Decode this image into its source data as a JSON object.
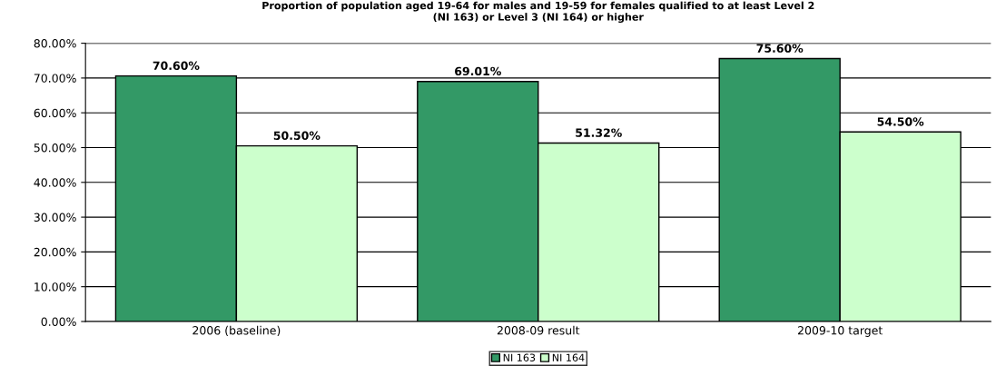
{
  "chart_data": {
    "type": "bar",
    "title": "Proportion of population aged 19-64 for males and 19-59 for females qualified to at least Level 2\n(NI 163) or Level 3 (NI 164) or higher",
    "categories": [
      "2006 (baseline)",
      "2008-09 result",
      "2009-10 target"
    ],
    "series": [
      {
        "name": "NI 163",
        "color": "#339966",
        "values": [
          70.6,
          69.01,
          75.6
        ],
        "value_labels": [
          "70.60%",
          "69.01%",
          "75.60%"
        ]
      },
      {
        "name": "NI 164",
        "color": "#ccffcc",
        "values": [
          50.5,
          51.32,
          54.5
        ],
        "value_labels": [
          "50.50%",
          "51.32%",
          "54.50%"
        ]
      }
    ],
    "ylim": [
      0,
      80
    ],
    "yticks": [
      {
        "value": 0,
        "label": "0.00%"
      },
      {
        "value": 10,
        "label": "10.00%"
      },
      {
        "value": 20,
        "label": "20.00%"
      },
      {
        "value": 30,
        "label": "30.00%"
      },
      {
        "value": 40,
        "label": "40.00%"
      },
      {
        "value": 50,
        "label": "50.00%"
      },
      {
        "value": 60,
        "label": "60.00%"
      },
      {
        "value": 70,
        "label": "70.00%"
      },
      {
        "value": 80,
        "label": "80.00%"
      }
    ],
    "grid": "y",
    "legend": "bottom"
  }
}
